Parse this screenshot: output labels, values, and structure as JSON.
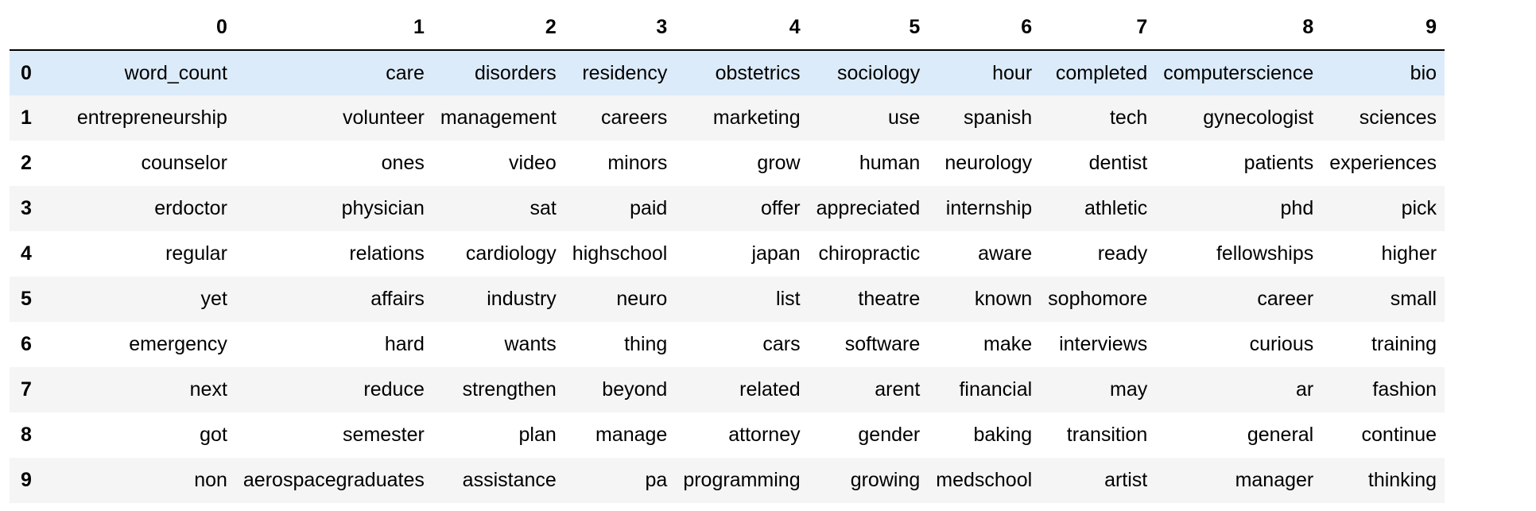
{
  "table": {
    "index_header": "",
    "columns": [
      "0",
      "1",
      "2",
      "3",
      "4",
      "5",
      "6",
      "7",
      "8",
      "9"
    ],
    "rows": [
      {
        "index": "0",
        "cells": [
          "word_count",
          "care",
          "disorders",
          "residency",
          "obstetrics",
          "sociology",
          "hour",
          "completed",
          "computerscience",
          "bio"
        ]
      },
      {
        "index": "1",
        "cells": [
          "entrepreneurship",
          "volunteer",
          "management",
          "careers",
          "marketing",
          "use",
          "spanish",
          "tech",
          "gynecologist",
          "sciences"
        ]
      },
      {
        "index": "2",
        "cells": [
          "counselor",
          "ones",
          "video",
          "minors",
          "grow",
          "human",
          "neurology",
          "dentist",
          "patients",
          "experiences"
        ]
      },
      {
        "index": "3",
        "cells": [
          "erdoctor",
          "physician",
          "sat",
          "paid",
          "offer",
          "appreciated",
          "internship",
          "athletic",
          "phd",
          "pick"
        ]
      },
      {
        "index": "4",
        "cells": [
          "regular",
          "relations",
          "cardiology",
          "highschool",
          "japan",
          "chiropractic",
          "aware",
          "ready",
          "fellowships",
          "higher"
        ]
      },
      {
        "index": "5",
        "cells": [
          "yet",
          "affairs",
          "industry",
          "neuro",
          "list",
          "theatre",
          "known",
          "sophomore",
          "career",
          "small"
        ]
      },
      {
        "index": "6",
        "cells": [
          "emergency",
          "hard",
          "wants",
          "thing",
          "cars",
          "software",
          "make",
          "interviews",
          "curious",
          "training"
        ]
      },
      {
        "index": "7",
        "cells": [
          "next",
          "reduce",
          "strengthen",
          "beyond",
          "related",
          "arent",
          "financial",
          "may",
          "ar",
          "fashion"
        ]
      },
      {
        "index": "8",
        "cells": [
          "got",
          "semester",
          "plan",
          "manage",
          "attorney",
          "gender",
          "baking",
          "transition",
          "general",
          "continue"
        ]
      },
      {
        "index": "9",
        "cells": [
          "non",
          "aerospacegraduates",
          "assistance",
          "pa",
          "programming",
          "growing",
          "medschool",
          "artist",
          "manager",
          "thinking"
        ]
      }
    ],
    "highlighted_row": "0",
    "colors": {
      "highlight": "#dcebfa",
      "stripe": "#f5f5f5",
      "header_rule": "#000000"
    }
  }
}
